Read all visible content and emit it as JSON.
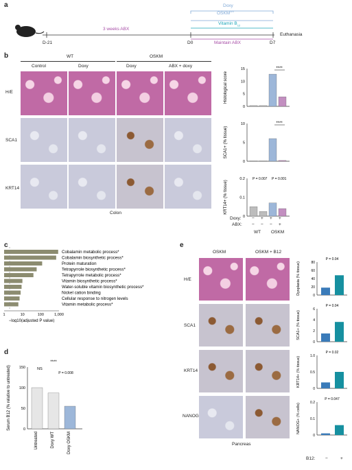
{
  "panels": {
    "a": "a",
    "b": "b",
    "c": "c",
    "d": "d",
    "e": "e"
  },
  "timeline": {
    "doxy": "Doxy",
    "oskm": "OSKM",
    "oskm_sup": "1/4",
    "vitamin": "Vitamin B",
    "vitamin_sub": "12",
    "abx3": "3 weeks ABX",
    "maintain": "Maintain ABX",
    "euthanasia": "Euthanasia",
    "d21": "D-21",
    "d0": "D0",
    "d7": "D7",
    "colors": {
      "abx": "#a64ca6",
      "doxy": "#7fa8d6",
      "vit": "#18a4b8"
    }
  },
  "panel_b": {
    "groups": [
      "WT",
      "OSKM"
    ],
    "columns": [
      "Control",
      "Doxy",
      "Doxy",
      "ABX + doxy"
    ],
    "rows": [
      "H/E",
      "SCA1",
      "KRT14"
    ],
    "tissue": "Colon",
    "conditions": {
      "doxy_label": "Doxy:",
      "abx_label": "ABX:",
      "doxy": [
        "−",
        "+",
        "+",
        "+"
      ],
      "abx": [
        "−",
        "−",
        "−",
        "+"
      ],
      "groups": [
        "WT",
        "OSKM"
      ]
    }
  },
  "chart_b": [
    {
      "ylabel": "Histological score",
      "ylim": [
        0,
        15
      ],
      "ticks": [
        "0",
        "5",
        "10",
        "15"
      ],
      "values": [
        0.3,
        0.3,
        12.8,
        3.8
      ],
      "sig": "****"
    },
    {
      "ylabel": "SCA1+ (% tissue)",
      "ylim": [
        0,
        10
      ],
      "ticks": [
        "0",
        "5",
        "10"
      ],
      "values": [
        0.1,
        0.1,
        6.0,
        0.2
      ],
      "sig": "****"
    },
    {
      "ylabel": "KRT14+ (% tissue)",
      "ylim": [
        0,
        0.2
      ],
      "ticks": [
        "0",
        "0.1",
        "0.2"
      ],
      "values": [
        0.05,
        0.025,
        0.07,
        0.04
      ],
      "p1": "P = 0.007",
      "p2": "P = 0.001"
    }
  ],
  "chart_data": [
    {
      "type": "bar",
      "title": "",
      "xlabel": "−log10(adjusted P value)",
      "xscale": "log",
      "xticks": [
        "1",
        "10",
        "100",
        "1,000"
      ],
      "categories": [
        "Cobalamin metabolic process*",
        "Cobalamin biosynthetic process*",
        "Protein maturation",
        "Tetrapyrrole biosynthetic process*",
        "Tetrapyrrole metabolic process*",
        "Vitamin biosynthetic process*",
        "Water-soluble vitamin biosynthetic process*",
        "Nickel cation binding",
        "Cellular response to nitrogen levels",
        "Vitamin metabolic process*"
      ],
      "values": [
        900,
        700,
        120,
        60,
        40,
        10,
        9,
        8,
        7,
        6
      ],
      "threshold": 2
    },
    {
      "type": "bar",
      "ylabel": "Serum B12 (% relative to untreated)",
      "categories": [
        "Untreated",
        "Doxy WT",
        "Doxy OSKM"
      ],
      "values": [
        100,
        87,
        55
      ],
      "ylim": [
        0,
        150
      ],
      "ticks": [
        "0",
        "50",
        "100",
        "150"
      ],
      "annotations": [
        "NS",
        "P = 0.008",
        "****"
      ]
    }
  ],
  "panel_e": {
    "columns": [
      "OSKM",
      "OSKM + B12"
    ],
    "rows": [
      "H/E",
      "SCA1",
      "KRT14",
      "NANOG"
    ],
    "tissue": "Pancreas",
    "b12_label": "B12:",
    "b12": [
      "−",
      "+"
    ],
    "charts": [
      {
        "ylabel": "Dysplasia (% tissue)",
        "ticks": [
          "0",
          "20",
          "40",
          "60",
          "80"
        ],
        "values": [
          18,
          48
        ],
        "ymax": 80,
        "p": "P = 0.04"
      },
      {
        "ylabel": "SCA1+ (% tissue)",
        "ticks": [
          "0",
          "2",
          "4",
          "6"
        ],
        "values": [
          1.5,
          3.6
        ],
        "ymax": 6,
        "p": "P = 0.04"
      },
      {
        "ylabel": "KRT14+ (% tissue)",
        "ticks": [
          "0",
          "0.5",
          "1.0"
        ],
        "values": [
          0.18,
          0.5
        ],
        "ymax": 1.0,
        "p": "P = 0.02"
      },
      {
        "ylabel": "NANOG+ (% cells)",
        "ticks": [
          "0",
          "0.1",
          "0.2"
        ],
        "values": [
          0.01,
          0.06
        ],
        "ymax": 0.2,
        "p": "P = 0.047"
      }
    ],
    "bar_colors": [
      "#3a7bb9",
      "#1690a0"
    ]
  }
}
